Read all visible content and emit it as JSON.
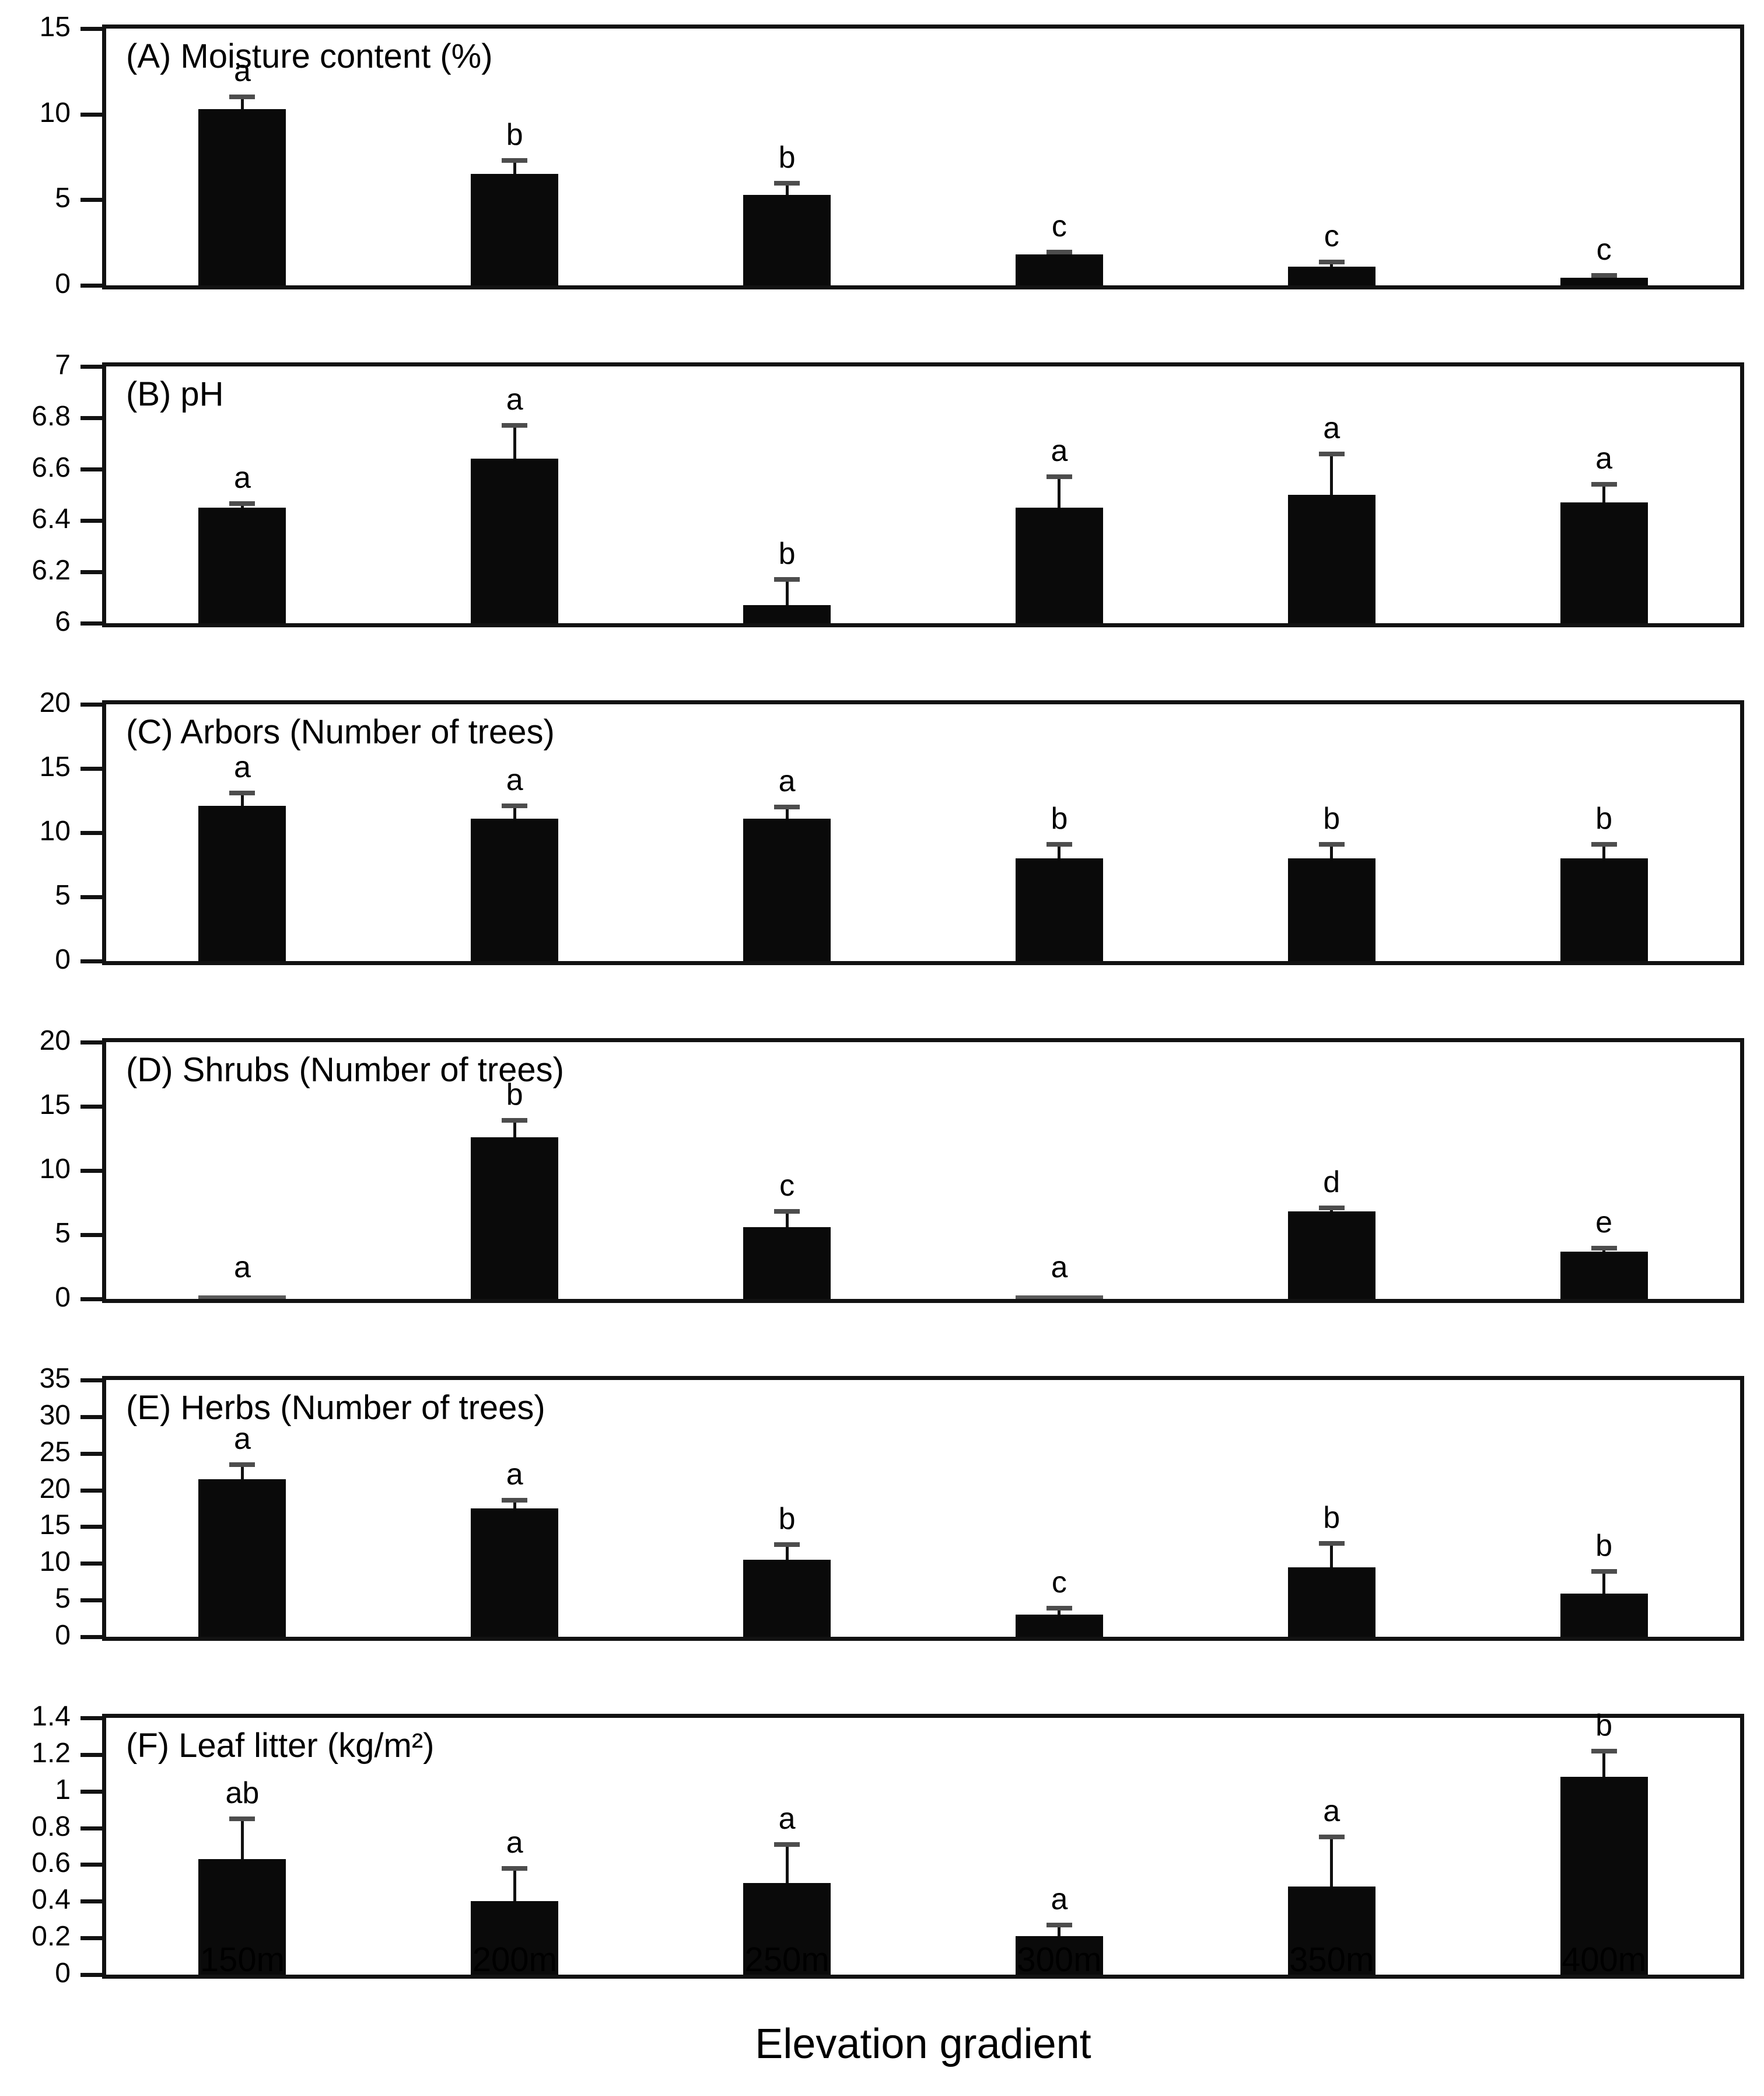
{
  "x_axis": {
    "label": "Elevation gradient",
    "categories": [
      "150m",
      "200m",
      "250m",
      "300m",
      "350m",
      "400m"
    ]
  },
  "chart_data": {
    "type": "bar",
    "layout": "6 stacked panels, shared x axis",
    "grid": false,
    "legend": "none",
    "bar_color": "#0a0a0a",
    "error_cap_color": "#4d4d4d",
    "categories": [
      "150m",
      "200m",
      "250m",
      "300m",
      "350m",
      "400m"
    ],
    "xlabel": "Elevation gradient",
    "panels": [
      {
        "id": "A",
        "title": "(A) Moisture content (%)",
        "ylim": [
          0,
          15
        ],
        "yticks": [
          0,
          5,
          10,
          15
        ],
        "ytick_labels": [
          "0",
          "5",
          "10",
          "15"
        ],
        "values": [
          10.3,
          6.5,
          5.3,
          1.8,
          1.1,
          0.45
        ],
        "errors_up": [
          0.7,
          0.8,
          0.65,
          0.15,
          0.25,
          0.12
        ],
        "sig_letters": [
          "a",
          "b",
          "b",
          "c",
          "c",
          "c"
        ]
      },
      {
        "id": "B",
        "title": "(B) pH",
        "ylim": [
          6,
          7
        ],
        "yticks": [
          6,
          6.2,
          6.4,
          6.6,
          6.8,
          7
        ],
        "ytick_labels": [
          "6",
          "6.2",
          "6.4",
          "6.6",
          "6.8",
          "7"
        ],
        "values": [
          6.45,
          6.64,
          6.07,
          6.45,
          6.5,
          6.47
        ],
        "errors_up": [
          0.015,
          0.13,
          0.1,
          0.12,
          0.16,
          0.07
        ],
        "sig_letters": [
          "a",
          "a",
          "b",
          "a",
          "a",
          "a"
        ]
      },
      {
        "id": "C",
        "title": "(C) Arbors (Number of trees)",
        "ylim": [
          0,
          20
        ],
        "yticks": [
          0,
          5,
          10,
          15,
          20
        ],
        "ytick_labels": [
          "0",
          "5",
          "10",
          "15",
          "20"
        ],
        "values": [
          12.1,
          11.1,
          11.1,
          8.0,
          8.0,
          8.0
        ],
        "errors_up": [
          1.0,
          1.0,
          0.9,
          1.1,
          1.1,
          1.1
        ],
        "sig_letters": [
          "a",
          "a",
          "a",
          "b",
          "b",
          "b"
        ]
      },
      {
        "id": "D",
        "title": "(D) Shrubs (Number of trees)",
        "ylim": [
          0,
          20
        ],
        "yticks": [
          0,
          5,
          10,
          15,
          20
        ],
        "ytick_labels": [
          "0",
          "5",
          "10",
          "15",
          "20"
        ],
        "values": [
          0.15,
          12.6,
          5.6,
          0.15,
          6.8,
          3.7
        ],
        "errors_up": [
          0,
          1.3,
          1.2,
          0,
          0.3,
          0.25
        ],
        "sig_letters": [
          "a",
          "b",
          "c",
          "a",
          "d",
          "e"
        ]
      },
      {
        "id": "E",
        "title": "(E) Herbs (Number of trees)",
        "ylim": [
          0,
          35
        ],
        "yticks": [
          0,
          5,
          10,
          15,
          20,
          25,
          30,
          35
        ],
        "ytick_labels": [
          "0",
          "5",
          "10",
          "15",
          "20",
          "25",
          "30",
          "35"
        ],
        "values": [
          21.5,
          17.5,
          10.5,
          3.0,
          9.5,
          5.9
        ],
        "errors_up": [
          2.0,
          1.1,
          2.1,
          0.9,
          3.2,
          3.0
        ],
        "sig_letters": [
          "a",
          "a",
          "b",
          "c",
          "b",
          "b"
        ]
      },
      {
        "id": "F",
        "title": "(F) Leaf litter (kg/m²)",
        "ylim": [
          0,
          1.4
        ],
        "yticks": [
          0,
          0.2,
          0.4,
          0.6,
          0.8,
          1,
          1.2,
          1.4
        ],
        "ytick_labels": [
          "0",
          "0.2",
          "0.4",
          "0.6",
          "0.8",
          "1",
          "1.2",
          "1.4"
        ],
        "values": [
          0.63,
          0.4,
          0.5,
          0.21,
          0.48,
          1.08
        ],
        "errors_up": [
          0.22,
          0.18,
          0.21,
          0.06,
          0.27,
          0.14
        ],
        "sig_letters": [
          "ab",
          "a",
          "a",
          "a",
          "a",
          "b"
        ]
      }
    ]
  }
}
